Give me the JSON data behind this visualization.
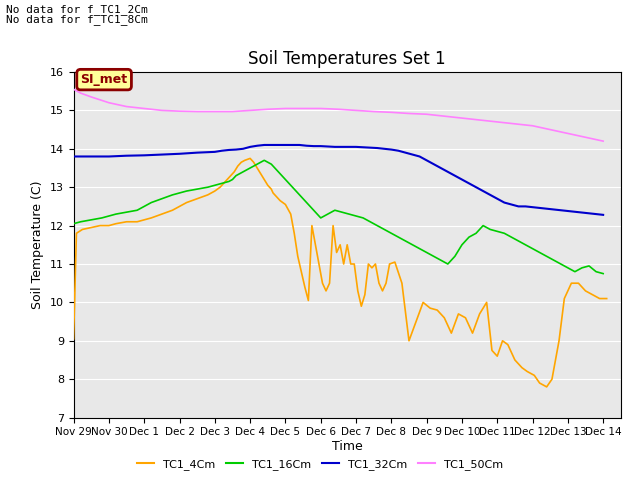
{
  "title": "Soil Temperatures Set 1",
  "xlabel": "Time",
  "ylabel": "Soil Temperature (C)",
  "ylim": [
    7.0,
    16.0
  ],
  "yticks": [
    7.0,
    8.0,
    9.0,
    10.0,
    11.0,
    12.0,
    13.0,
    14.0,
    15.0,
    16.0
  ],
  "text_annotations": [
    "No data for f_TC1_2Cm",
    "No data for f_TC1_8Cm"
  ],
  "legend_label": "SI_met",
  "legend_box_color": "#ffff99",
  "legend_box_border": "#8B0000",
  "colors": {
    "TC1_4Cm": "#FFA500",
    "TC1_16Cm": "#00CC00",
    "TC1_32Cm": "#0000CC",
    "TC1_50Cm": "#FF80FF"
  },
  "background_color": "#E8E8E8",
  "grid_color": "#FFFFFF",
  "xtick_labels": [
    "Nov 29",
    "Nov 30",
    "Dec 1",
    "Dec 2",
    "Dec 3",
    "Dec 4",
    "Dec 5",
    "Dec 6",
    "Dec 7",
    "Dec 8",
    "Dec 9",
    "Dec 10",
    "Dec 11",
    "Dec 12",
    "Dec 13",
    "Dec 14"
  ],
  "TC1_4Cm_x": [
    0,
    0.08,
    0.25,
    0.5,
    0.75,
    1.0,
    1.2,
    1.5,
    1.8,
    2.0,
    2.2,
    2.5,
    2.8,
    3.0,
    3.2,
    3.5,
    3.8,
    4.0,
    4.15,
    4.3,
    4.45,
    4.55,
    4.65,
    4.75,
    4.85,
    5.0,
    5.1,
    5.2,
    5.3,
    5.4,
    5.5,
    5.6,
    5.65,
    5.75,
    5.85,
    6.0,
    6.15,
    6.25,
    6.35,
    6.45,
    6.55,
    6.65,
    6.75,
    6.85,
    6.95,
    7.05,
    7.15,
    7.25,
    7.35,
    7.45,
    7.55,
    7.65,
    7.75,
    7.85,
    7.95,
    8.05,
    8.15,
    8.25,
    8.35,
    8.45,
    8.55,
    8.65,
    8.75,
    8.85,
    8.95,
    9.1,
    9.3,
    9.5,
    9.7,
    9.9,
    10.1,
    10.3,
    10.5,
    10.7,
    10.9,
    11.1,
    11.3,
    11.5,
    11.7,
    11.85,
    12.0,
    12.15,
    12.3,
    12.5,
    12.7,
    12.85,
    13.05,
    13.2,
    13.4,
    13.55,
    13.75,
    13.9,
    14.1,
    14.3,
    14.5,
    14.7,
    14.9,
    15.1
  ],
  "TC1_4Cm_y": [
    9.05,
    11.8,
    11.9,
    11.95,
    12.0,
    12.0,
    12.05,
    12.1,
    12.1,
    12.15,
    12.2,
    12.3,
    12.4,
    12.5,
    12.6,
    12.7,
    12.8,
    12.9,
    13.0,
    13.15,
    13.3,
    13.4,
    13.55,
    13.65,
    13.7,
    13.75,
    13.65,
    13.5,
    13.35,
    13.2,
    13.05,
    12.95,
    12.85,
    12.75,
    12.65,
    12.55,
    12.3,
    11.8,
    11.2,
    10.8,
    10.4,
    10.05,
    12.0,
    11.5,
    11.0,
    10.5,
    10.3,
    10.5,
    12.0,
    11.3,
    11.5,
    11.0,
    11.5,
    11.0,
    11.0,
    10.3,
    9.9,
    10.2,
    11.0,
    10.9,
    11.0,
    10.5,
    10.3,
    10.5,
    11.0,
    11.05,
    10.5,
    9.0,
    9.5,
    10.0,
    9.85,
    9.8,
    9.6,
    9.2,
    9.7,
    9.6,
    9.2,
    9.7,
    10.0,
    8.75,
    8.6,
    9.0,
    8.9,
    8.5,
    8.3,
    8.2,
    8.1,
    7.9,
    7.8,
    8.0,
    9.0,
    10.1,
    10.5,
    10.5,
    10.3,
    10.2,
    10.1,
    10.1
  ],
  "TC1_16Cm_x": [
    0,
    0.2,
    0.5,
    0.8,
    1.0,
    1.2,
    1.5,
    1.8,
    2.0,
    2.2,
    2.5,
    2.8,
    3.0,
    3.2,
    3.5,
    3.8,
    4.0,
    4.2,
    4.4,
    4.5,
    4.6,
    4.7,
    4.8,
    4.9,
    5.0,
    5.1,
    5.2,
    5.3,
    5.4,
    5.5,
    5.6,
    5.7,
    5.8,
    5.9,
    6.0,
    6.1,
    6.2,
    6.3,
    6.4,
    6.5,
    6.6,
    6.7,
    6.8,
    6.9,
    7.0,
    7.2,
    7.4,
    7.6,
    7.8,
    8.0,
    8.2,
    8.4,
    8.6,
    8.8,
    9.0,
    9.2,
    9.4,
    9.6,
    9.8,
    10.0,
    10.2,
    10.4,
    10.6,
    10.8,
    11.0,
    11.2,
    11.4,
    11.6,
    11.8,
    12.0,
    12.2,
    12.4,
    12.6,
    12.8,
    13.0,
    13.2,
    13.4,
    13.6,
    13.8,
    14.0,
    14.2,
    14.4,
    14.6,
    14.8,
    15.0
  ],
  "TC1_16Cm_y": [
    12.05,
    12.1,
    12.15,
    12.2,
    12.25,
    12.3,
    12.35,
    12.4,
    12.5,
    12.6,
    12.7,
    12.8,
    12.85,
    12.9,
    12.95,
    13.0,
    13.05,
    13.1,
    13.15,
    13.2,
    13.3,
    13.35,
    13.4,
    13.45,
    13.5,
    13.55,
    13.6,
    13.65,
    13.7,
    13.65,
    13.6,
    13.5,
    13.4,
    13.3,
    13.2,
    13.1,
    13.0,
    12.9,
    12.8,
    12.7,
    12.6,
    12.5,
    12.4,
    12.3,
    12.2,
    12.3,
    12.4,
    12.35,
    12.3,
    12.25,
    12.2,
    12.1,
    12.0,
    11.9,
    11.8,
    11.7,
    11.6,
    11.5,
    11.4,
    11.3,
    11.2,
    11.1,
    11.0,
    11.2,
    11.5,
    11.7,
    11.8,
    12.0,
    11.9,
    11.85,
    11.8,
    11.7,
    11.6,
    11.5,
    11.4,
    11.3,
    11.2,
    11.1,
    11.0,
    10.9,
    10.8,
    10.9,
    10.95,
    10.8,
    10.75
  ],
  "TC1_32Cm_x": [
    0,
    0.2,
    0.5,
    1.0,
    1.5,
    2.0,
    2.5,
    3.0,
    3.5,
    4.0,
    4.2,
    4.4,
    4.6,
    4.8,
    5.0,
    5.2,
    5.4,
    5.6,
    5.8,
    6.0,
    6.2,
    6.4,
    6.6,
    6.8,
    7.0,
    7.2,
    7.4,
    7.6,
    7.8,
    8.0,
    8.2,
    8.4,
    8.6,
    8.8,
    9.0,
    9.2,
    9.4,
    9.6,
    9.8,
    10.0,
    10.2,
    10.4,
    10.6,
    10.8,
    11.0,
    11.2,
    11.4,
    11.6,
    11.8,
    12.0,
    12.2,
    12.4,
    12.6,
    12.8,
    13.0,
    13.2,
    13.4,
    13.6,
    13.8,
    14.0,
    14.2,
    14.4,
    14.6,
    14.8,
    15.0
  ],
  "TC1_32Cm_y": [
    13.8,
    13.8,
    13.8,
    13.8,
    13.82,
    13.83,
    13.85,
    13.87,
    13.9,
    13.92,
    13.95,
    13.97,
    13.98,
    14.0,
    14.05,
    14.08,
    14.1,
    14.1,
    14.1,
    14.1,
    14.1,
    14.1,
    14.08,
    14.07,
    14.07,
    14.06,
    14.05,
    14.05,
    14.05,
    14.05,
    14.04,
    14.03,
    14.02,
    14.0,
    13.98,
    13.95,
    13.9,
    13.85,
    13.8,
    13.7,
    13.6,
    13.5,
    13.4,
    13.3,
    13.2,
    13.1,
    13.0,
    12.9,
    12.8,
    12.7,
    12.6,
    12.55,
    12.5,
    12.5,
    12.48,
    12.46,
    12.44,
    12.42,
    12.4,
    12.38,
    12.36,
    12.34,
    12.32,
    12.3,
    12.28
  ],
  "TC1_50Cm_x": [
    0,
    0.2,
    0.5,
    1.0,
    1.5,
    2.0,
    2.5,
    3.0,
    3.5,
    4.0,
    4.5,
    5.0,
    5.5,
    6.0,
    6.5,
    7.0,
    7.5,
    8.0,
    8.5,
    9.0,
    9.5,
    10.0,
    10.5,
    11.0,
    11.5,
    12.0,
    12.5,
    13.0,
    13.5,
    14.0,
    14.5,
    15.0
  ],
  "TC1_50Cm_y": [
    15.55,
    15.45,
    15.35,
    15.2,
    15.1,
    15.05,
    15.0,
    14.98,
    14.97,
    14.97,
    14.97,
    15.0,
    15.03,
    15.05,
    15.05,
    15.05,
    15.03,
    15.0,
    14.97,
    14.95,
    14.92,
    14.9,
    14.85,
    14.8,
    14.75,
    14.7,
    14.65,
    14.6,
    14.5,
    14.4,
    14.3,
    14.2
  ]
}
